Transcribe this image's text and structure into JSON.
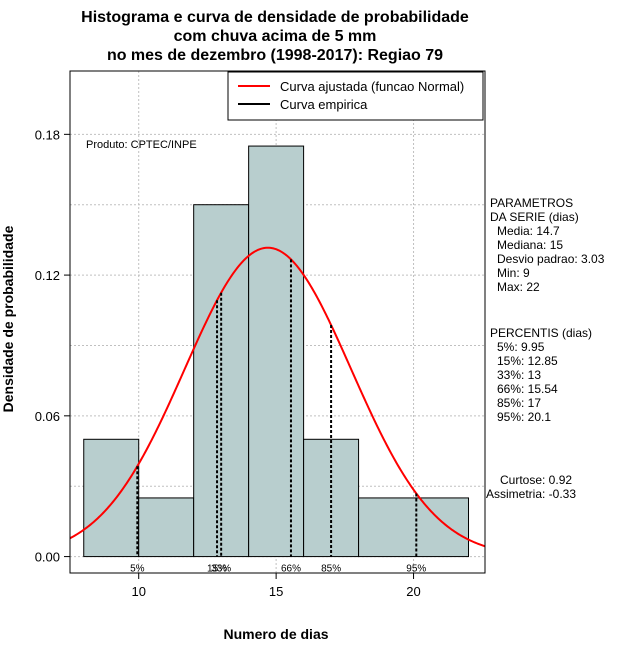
{
  "chart_data": {
    "type": "histogram",
    "title": [
      "Histograma e curva de densidade de probabilidade",
      "com chuva acima de 5 mm",
      "no mes de dezembro (1998-2017): Regiao 79"
    ],
    "xlabel": "Numero de dias",
    "ylabel": "Densidade de probabilidade",
    "xlim": [
      7.5,
      22.6
    ],
    "ylim": [
      -0.007,
      0.207
    ],
    "xticks": [
      10,
      15,
      20
    ],
    "xtick_labels": [
      "10",
      "15",
      "20"
    ],
    "yticks": [
      0.0,
      0.06,
      0.12,
      0.18
    ],
    "ytick_labels": [
      "0.00",
      "0.06",
      "0.12",
      "0.18"
    ],
    "grid": true,
    "bins": [
      {
        "start": 8,
        "end": 10,
        "density": 0.05
      },
      {
        "start": 10,
        "end": 12,
        "density": 0.025
      },
      {
        "start": 12,
        "end": 14,
        "density": 0.15
      },
      {
        "start": 14,
        "end": 16,
        "density": 0.175
      },
      {
        "start": 16,
        "end": 18,
        "density": 0.05
      },
      {
        "start": 18,
        "end": 22,
        "density": 0.025
      }
    ],
    "normal_curve": {
      "mean": 14.7,
      "sd": 3.03,
      "color": "#ff0000"
    },
    "bar_color": "#b8cece",
    "legend": {
      "position": "top-right",
      "entries": [
        {
          "label": "Curva ajustada (funcao Normal)",
          "color": "#ff0000"
        },
        {
          "label": "Curva empirica",
          "color": "#000000"
        }
      ]
    },
    "annotation": "Produto: CPTEC/INPE",
    "percentiles": [
      {
        "value": 9.95,
        "label": "5%"
      },
      {
        "value": 12.85,
        "label": "15%"
      },
      {
        "value": 13,
        "label": "33%"
      },
      {
        "value": 15.54,
        "label": "66%"
      },
      {
        "value": 17,
        "label": "85%"
      },
      {
        "value": 20.1,
        "label": "95%"
      }
    ],
    "parametros": {
      "header": [
        "PARAMETROS",
        "DA SERIE (dias)"
      ],
      "lines": [
        "Media: 14.7",
        "Mediana: 15",
        "Desvio padrao: 3.03",
        "Min: 9",
        "Max: 22"
      ]
    },
    "percentis_text": {
      "header": "PERCENTIS (dias)",
      "lines": [
        "5%: 9.95",
        "15%: 12.85",
        "33%: 13",
        "66%: 15.54",
        "85%: 17",
        "95%: 20.1"
      ]
    },
    "stats": [
      "Curtose: 0.92",
      "Assimetria: -0.33"
    ]
  }
}
